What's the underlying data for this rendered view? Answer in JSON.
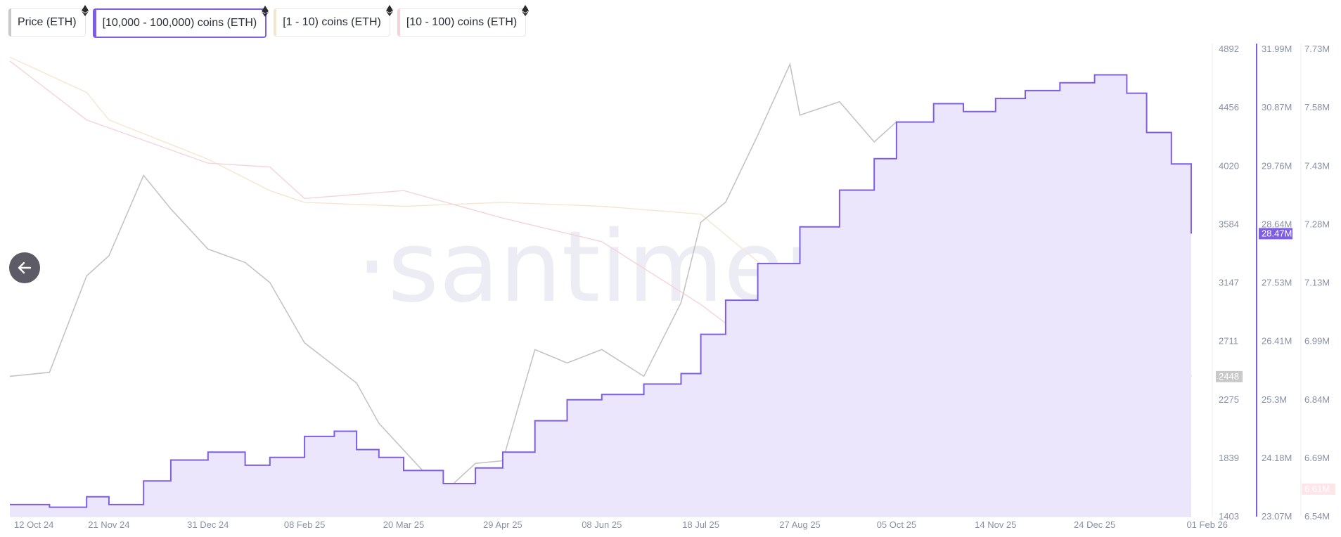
{
  "legend": {
    "items": [
      {
        "label": "Price (ETH)",
        "color": "#c9c9c9",
        "active": false
      },
      {
        "label": "[10,000 - 100,000) coins (ETH)",
        "color": "#7e5fe2",
        "active": true
      },
      {
        "label": "[1 - 10) coins (ETH)",
        "color": "#f5e6cf",
        "active": false
      },
      {
        "label": "[10 - 100) coins (ETH)",
        "color": "#f6d3d8",
        "active": false
      }
    ],
    "icon": "ethereum-icon"
  },
  "watermark": "·santiment·",
  "nav": {
    "icon": "arrow-left-icon"
  },
  "chart_data": {
    "type": "line",
    "x_labels": [
      "12 Oct 24",
      "21 Nov 24",
      "31 Dec 24",
      "08 Feb 25",
      "20 Mar 25",
      "29 Apr 25",
      "08 Jun 25",
      "18 Jul 25",
      "27 Aug 25",
      "05 Oct 25",
      "14 Nov 25",
      "24 Dec 25",
      "01 Feb 26"
    ],
    "x_range": [
      "12 Oct 24",
      "01 Feb 26"
    ],
    "axes": {
      "price": {
        "ticks": [
          "4892",
          "4456",
          "4020",
          "3584",
          "3147",
          "2711",
          "2275",
          "1839",
          "1403"
        ],
        "range": [
          1403,
          4892
        ],
        "current": "2448"
      },
      "whales": {
        "ticks": [
          "31.99M",
          "30.87M",
          "29.76M",
          "28.64M",
          "27.53M",
          "26.41M",
          "25.3M",
          "24.18M",
          "23.07M"
        ],
        "range": [
          23.07,
          31.99
        ],
        "current": "28.47M"
      },
      "small": {
        "ticks": [
          "7.73M",
          "7.58M",
          "7.43M",
          "7.28M",
          "7.13M",
          "6.99M",
          "6.84M",
          "6.69M",
          "6.54M"
        ],
        "range": [
          6.54,
          7.73
        ],
        "current": "6.61M"
      }
    },
    "series": [
      {
        "name": "Price (ETH)",
        "axis": "price",
        "color": "#c4c4c4",
        "x": [
          "12 Oct 24",
          "28 Oct 24",
          "12 Nov 24",
          "21 Nov 24",
          "05 Dec 24",
          "16 Dec 24",
          "31 Dec 24",
          "15 Jan 25",
          "25 Jan 25",
          "08 Feb 25",
          "01 Mar 25",
          "10 Mar 25",
          "20 Mar 25",
          "05 Apr 25",
          "18 Apr 25",
          "29 Apr 25",
          "12 May 25",
          "25 May 25",
          "08 Jun 25",
          "25 Jun 25",
          "10 Jul 25",
          "18 Jul 25",
          "28 Jul 25",
          "10 Aug 25",
          "23 Aug 25",
          "27 Aug 25",
          "12 Sep 25",
          "26 Sep 25",
          "05 Oct 25",
          "10 Oct 25",
          "26 Oct 25",
          "14 Nov 25",
          "22 Nov 25",
          "10 Dec 25",
          "24 Dec 25",
          "06 Jan 26",
          "14 Jan 26",
          "24 Jan 26",
          "01 Feb 26"
        ],
        "values": [
          2450,
          2480,
          3200,
          3350,
          3950,
          3700,
          3400,
          3300,
          3150,
          2700,
          2400,
          2100,
          1900,
          1580,
          1800,
          1820,
          2650,
          2550,
          2650,
          2450,
          3000,
          3600,
          3750,
          4250,
          4780,
          4400,
          4500,
          4200,
          4350,
          3800,
          3900,
          3050,
          2900,
          3150,
          3000,
          3050,
          3300,
          2800,
          2448
        ]
      },
      {
        "name": "[10,000 - 100,000) coins (ETH)",
        "axis": "whales",
        "color": "#7e5fe2",
        "x": [
          "12 Oct 24",
          "28 Oct 24",
          "12 Nov 24",
          "21 Nov 24",
          "05 Dec 24",
          "16 Dec 24",
          "31 Dec 24",
          "15 Jan 25",
          "25 Jan 25",
          "08 Feb 25",
          "20 Feb 25",
          "01 Mar 25",
          "10 Mar 25",
          "20 Mar 25",
          "05 Apr 25",
          "18 Apr 25",
          "29 Apr 25",
          "12 May 25",
          "25 May 25",
          "08 Jun 25",
          "25 Jun 25",
          "10 Jul 25",
          "18 Jul 25",
          "28 Jul 25",
          "10 Aug 25",
          "27 Aug 25",
          "12 Sep 25",
          "26 Sep 25",
          "05 Oct 25",
          "20 Oct 25",
          "01 Nov 25",
          "14 Nov 25",
          "26 Nov 25",
          "10 Dec 25",
          "24 Dec 25",
          "06 Jan 26",
          "14 Jan 26",
          "24 Jan 26",
          "01 Feb 26"
        ],
        "values": [
          23.3,
          23.25,
          23.45,
          23.3,
          23.75,
          24.15,
          24.3,
          24.05,
          24.2,
          24.6,
          24.7,
          24.35,
          24.2,
          23.95,
          23.7,
          24.0,
          24.3,
          24.9,
          25.3,
          25.4,
          25.6,
          25.8,
          26.55,
          27.2,
          27.9,
          28.6,
          29.3,
          29.9,
          30.6,
          30.95,
          30.8,
          31.05,
          31.2,
          31.35,
          31.5,
          31.15,
          30.4,
          29.8,
          28.47
        ]
      },
      {
        "name": "[1 - 10) coins (ETH)",
        "axis": "small",
        "color": "#f5e6cf",
        "x": [
          "12 Oct 24",
          "12 Nov 24",
          "21 Nov 24",
          "31 Dec 24",
          "25 Jan 25",
          "08 Feb 25",
          "20 Mar 25",
          "29 Apr 25",
          "08 Jun 25",
          "18 Jul 25",
          "27 Aug 25",
          "05 Oct 25",
          "14 Nov 25",
          "24 Dec 25",
          "01 Feb 26"
        ],
        "values": [
          7.71,
          7.62,
          7.55,
          7.45,
          7.37,
          7.34,
          7.33,
          7.34,
          7.33,
          7.31,
          7.1,
          6.93,
          6.78,
          6.68,
          6.61
        ]
      },
      {
        "name": "[10 - 100) coins (ETH)",
        "axis": "small",
        "color": "#f6d3d8",
        "x": [
          "12 Oct 24",
          "12 Nov 24",
          "31 Dec 24",
          "25 Jan 25",
          "08 Feb 25",
          "20 Mar 25",
          "29 Apr 25",
          "08 Jun 25",
          "18 Jul 25",
          "27 Aug 25",
          "14 Sep 25",
          "05 Oct 25",
          "10 Oct 25",
          "14 Nov 25",
          "24 Dec 25",
          "01 Feb 26"
        ],
        "values": [
          7.7,
          7.55,
          7.44,
          7.43,
          7.35,
          7.37,
          7.3,
          7.24,
          7.08,
          6.89,
          6.81,
          6.78,
          6.9,
          6.77,
          6.66,
          6.63
        ]
      }
    ]
  }
}
